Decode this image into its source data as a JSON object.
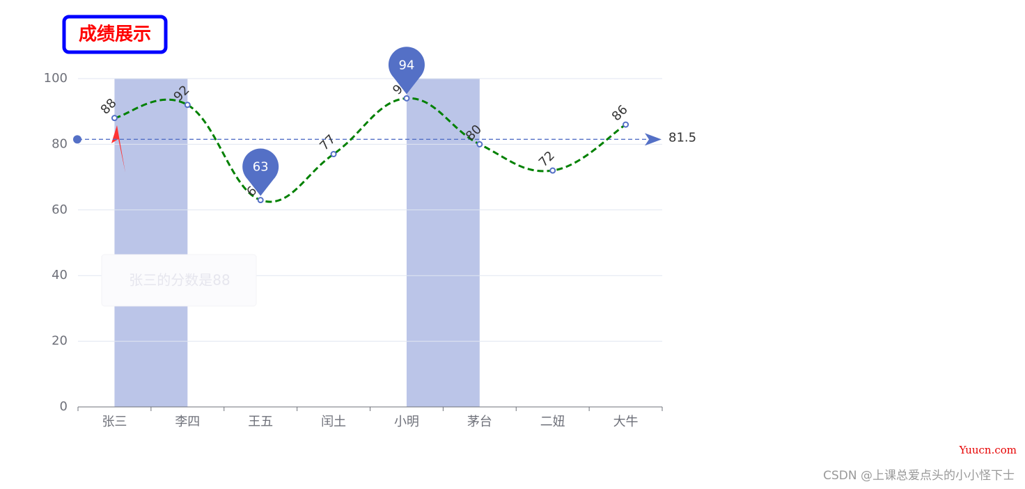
{
  "chart_data": {
    "type": "line",
    "title": "成绩展示",
    "categories": [
      "张三",
      "李四",
      "王五",
      "闰土",
      "小明",
      "茅台",
      "二妞",
      "大牛"
    ],
    "values": [
      88,
      92,
      63,
      77,
      94,
      80,
      72,
      86
    ],
    "color": "#008000",
    "point_color": "#5470c6",
    "smooth": true,
    "ylim": [
      0,
      100
    ],
    "yticks": [
      0,
      20,
      40,
      60,
      80,
      100
    ],
    "grid": true,
    "mark_points": [
      {
        "category": "小明",
        "value": 94
      },
      {
        "category": "王五",
        "value": 63
      }
    ],
    "mark_line": {
      "value": 81.5
    },
    "mark_areas": [
      {
        "from": "张三",
        "to": "李四"
      },
      {
        "from": "小明",
        "to": "茅台"
      }
    ],
    "tooltip": "张三的分数是88"
  },
  "watermark": {
    "site": "Yuucn.com",
    "author": "CSDN @上课总爱点头的小小怪下士"
  }
}
